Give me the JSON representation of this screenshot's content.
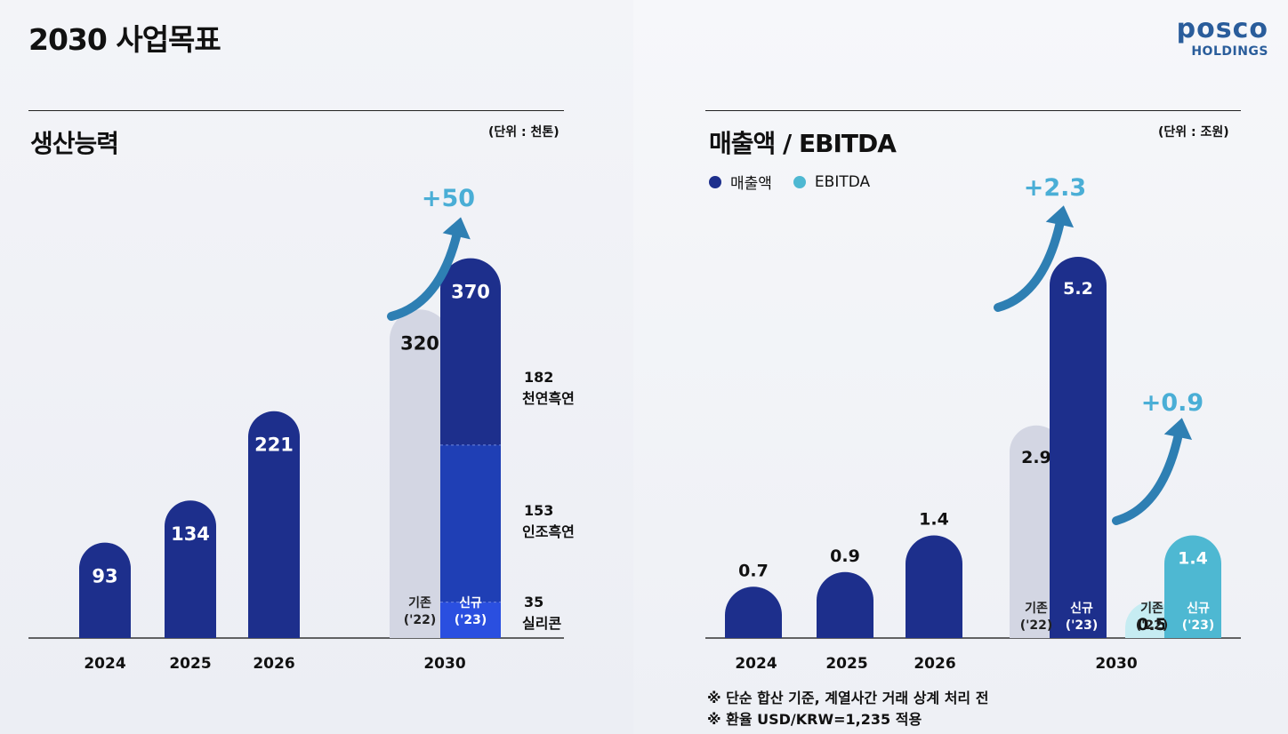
{
  "page_title": "2030 사업목표",
  "logo": {
    "main": "posco",
    "sub": "HOLDINGS"
  },
  "colors": {
    "dark_blue": "#1d2f8c",
    "mid_blue": "#1f3fb5",
    "bright_blue": "#2a4fe0",
    "gray_bar": "#d3d6e3",
    "teal": "#4eb8d2",
    "light_teal": "#c6ecf2",
    "arrow": "#2e7fb3",
    "increase_text": "#4aaed6"
  },
  "left": {
    "title": "생산능력",
    "unit": "(단위 : 천톤)",
    "increase_label": "+50",
    "segment_labels": [
      {
        "value": "182",
        "name": "천연흑연"
      },
      {
        "value": "153",
        "name": "인조흑연"
      },
      {
        "value": "35",
        "name": "실리콘"
      }
    ],
    "sub_labels": {
      "existing": "기존\n('22)",
      "new": "신규\n('23)"
    }
  },
  "right": {
    "title": "매출액 / EBITDA",
    "unit": "(단위 : 조원)",
    "legend": [
      {
        "label": "매출액",
        "color": "#1d2f8c"
      },
      {
        "label": "EBITDA",
        "color": "#4eb8d2"
      }
    ],
    "increase_revenue": "+2.3",
    "increase_ebitda": "+0.9",
    "notes": [
      "※ 단순 합산 기준, 계열사간 거래 상계 처리 전",
      "※ 환율 USD/KRW=1,235 적용"
    ]
  },
  "chart_data": [
    {
      "type": "bar",
      "title": "생산능력",
      "ylabel": "(단위 : 천톤)",
      "categories": [
        "2024",
        "2025",
        "2026",
        "2030 기존('22)",
        "2030 신규('23)"
      ],
      "x_axis_labels": [
        "2024",
        "2025",
        "2026",
        "2030"
      ],
      "values": [
        93,
        134,
        221,
        320,
        370
      ],
      "value_labels": [
        "93",
        "134",
        "221",
        "320",
        "370"
      ],
      "stack_2030_new": [
        {
          "name": "천연흑연",
          "value": 182
        },
        {
          "name": "인조흑연",
          "value": 153
        },
        {
          "name": "실리콘",
          "value": 35
        }
      ],
      "annotation": "+50"
    },
    {
      "type": "bar",
      "title": "매출액 / EBITDA",
      "ylabel": "(단위 : 조원)",
      "categories": [
        "2024",
        "2025",
        "2026",
        "2030 기존('22)",
        "2030 신규('23)"
      ],
      "x_axis_labels": [
        "2024",
        "2025",
        "2026",
        "2030"
      ],
      "series": [
        {
          "name": "매출액",
          "values": [
            0.7,
            0.9,
            1.4,
            2.9,
            5.2
          ],
          "labels": [
            "0.7",
            "0.9",
            "1.4",
            "2.9",
            "5.2"
          ]
        },
        {
          "name": "EBITDA",
          "values": [
            null,
            null,
            null,
            0.5,
            1.4
          ],
          "labels": [
            "",
            "",
            "",
            "0.5",
            "1.4"
          ]
        }
      ],
      "annotations": [
        "+2.3",
        "+0.9"
      ]
    }
  ]
}
